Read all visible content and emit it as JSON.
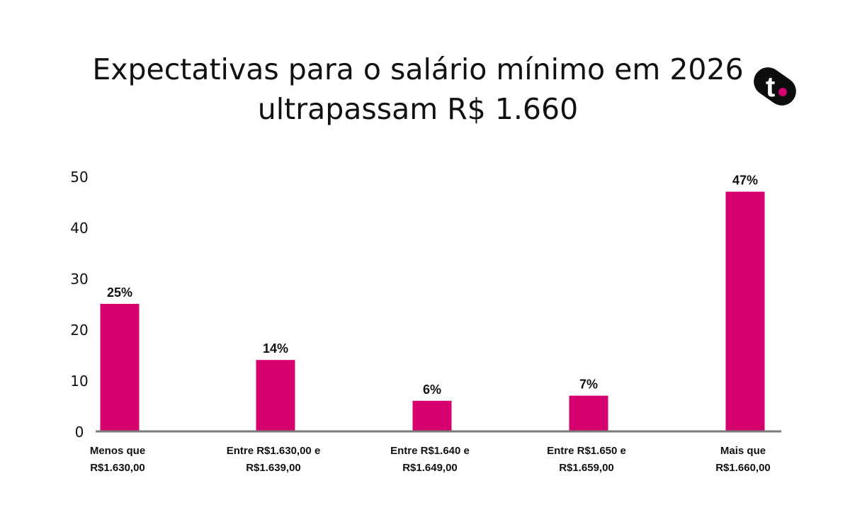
{
  "title": {
    "line1": "Expectativas para o salário mínimo em 2026",
    "line2": "ultrapassam R$ 1.660"
  },
  "logo": {
    "letter": "t",
    "icon": "t-logo-icon",
    "color_bg": "#0d0d0d",
    "color_dot": "#d4006f"
  },
  "colors": {
    "bar": "#d6006f",
    "axis": "#7a7a7a",
    "text": "#111111"
  },
  "chart_data": {
    "type": "bar",
    "categories": [
      [
        "Menos que",
        "R$1.630,00"
      ],
      [
        "Entre R$1.630,00 e",
        "R$1.639,00"
      ],
      [
        "Entre R$1.640 e",
        "R$1.649,00"
      ],
      [
        "Entre R$1.650 e",
        "R$1.659,00"
      ],
      [
        "Mais que",
        "R$1.660,00"
      ]
    ],
    "values": [
      25,
      14,
      6,
      7,
      47
    ],
    "data_labels": [
      "25%",
      "14%",
      "6%",
      "7%",
      "47%"
    ],
    "yticks": [
      "0",
      "10",
      "20",
      "30",
      "40",
      "50"
    ],
    "ylim": [
      0,
      50
    ],
    "grid": false,
    "legend": "none"
  }
}
